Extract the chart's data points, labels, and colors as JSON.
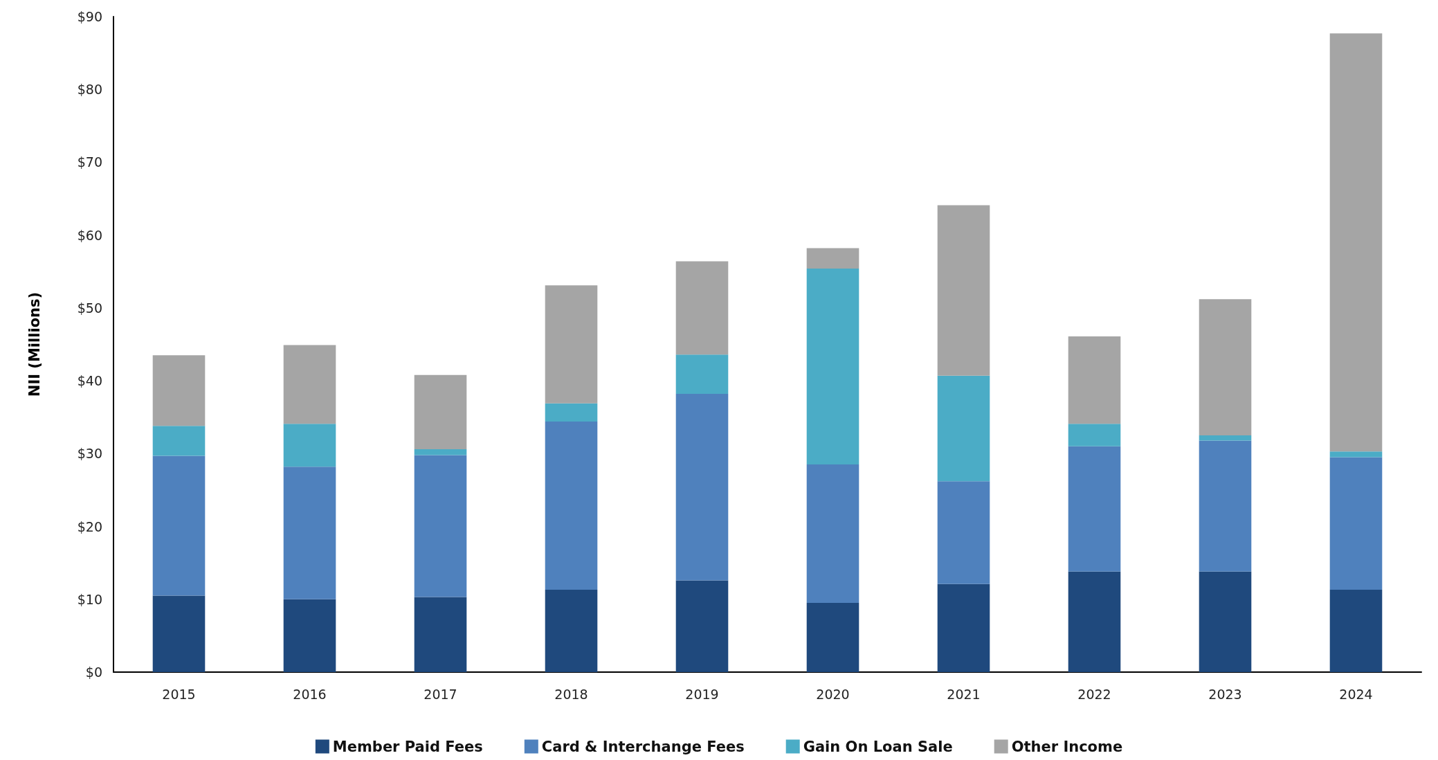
{
  "chart_data": {
    "type": "bar",
    "stacked": true,
    "ylabel": "NII (Millions)",
    "categories": [
      "2015",
      "2016",
      "2017",
      "2018",
      "2019",
      "2020",
      "2021",
      "2022",
      "2023",
      "2024"
    ],
    "series": [
      {
        "name": "Member Paid Fees",
        "color": "#1f497d",
        "values": [
          10.5,
          10.0,
          10.3,
          11.3,
          12.6,
          9.5,
          12.1,
          13.8,
          13.8,
          11.3
        ]
      },
      {
        "name": "Card & Interchange Fees",
        "color": "#4f81bd",
        "values": [
          19.2,
          18.2,
          19.5,
          23.1,
          25.6,
          19.0,
          14.1,
          17.2,
          18.0,
          18.2
        ]
      },
      {
        "name": "Gain On Loan Sale",
        "color": "#4bacc6",
        "values": [
          4.1,
          5.9,
          0.8,
          2.5,
          5.4,
          26.9,
          14.5,
          3.1,
          0.7,
          0.8
        ]
      },
      {
        "name": "Other Income",
        "color": "#a5a5a5",
        "values": [
          9.7,
          10.8,
          10.2,
          16.2,
          12.8,
          2.8,
          23.4,
          12.0,
          18.7,
          57.4
        ]
      }
    ],
    "ylim": [
      0,
      90
    ],
    "yticks": [
      {
        "value": 0,
        "label": "$0"
      },
      {
        "value": 10,
        "label": "$10"
      },
      {
        "value": 20,
        "label": "$20"
      },
      {
        "value": 30,
        "label": "$30"
      },
      {
        "value": 40,
        "label": "$40"
      },
      {
        "value": 50,
        "label": "$50"
      },
      {
        "value": 60,
        "label": "$60"
      },
      {
        "value": 70,
        "label": "$70"
      },
      {
        "value": 80,
        "label": "$80"
      },
      {
        "value": 90,
        "label": "$90"
      }
    ],
    "legend": "bottom"
  }
}
